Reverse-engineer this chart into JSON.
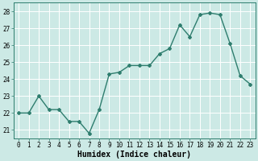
{
  "x": [
    0,
    1,
    2,
    3,
    4,
    5,
    6,
    7,
    8,
    9,
    10,
    11,
    12,
    13,
    14,
    15,
    16,
    17,
    18,
    19,
    20,
    21,
    22,
    23
  ],
  "y": [
    22.0,
    22.0,
    23.0,
    22.2,
    22.2,
    21.5,
    21.5,
    20.8,
    22.2,
    24.3,
    24.4,
    24.8,
    24.8,
    24.8,
    25.5,
    25.8,
    27.2,
    26.5,
    27.8,
    27.9,
    27.8,
    26.1,
    24.2,
    23.7
  ],
  "line_color": "#2e7d6e",
  "marker": "D",
  "markersize": 2,
  "linewidth": 1.0,
  "xlabel": "Humidex (Indice chaleur)",
  "xlabel_fontsize": 7,
  "ylim": [
    20.5,
    28.5
  ],
  "xlim": [
    -0.5,
    23.5
  ],
  "yticks": [
    21,
    22,
    23,
    24,
    25,
    26,
    27,
    28
  ],
  "xticks": [
    0,
    1,
    2,
    3,
    4,
    5,
    6,
    7,
    8,
    9,
    10,
    11,
    12,
    13,
    14,
    15,
    16,
    17,
    18,
    19,
    20,
    21,
    22,
    23
  ],
  "xtick_labels": [
    "0",
    "1",
    "2",
    "3",
    "4",
    "5",
    "6",
    "7",
    "8",
    "9",
    "10",
    "11",
    "12",
    "13",
    "14",
    "15",
    "16",
    "17",
    "18",
    "19",
    "20",
    "21",
    "22",
    "23"
  ],
  "background_color": "#cce9e5",
  "grid_color": "#ffffff",
  "tick_fontsize": 5.5,
  "ylabel_fontsize": 6
}
